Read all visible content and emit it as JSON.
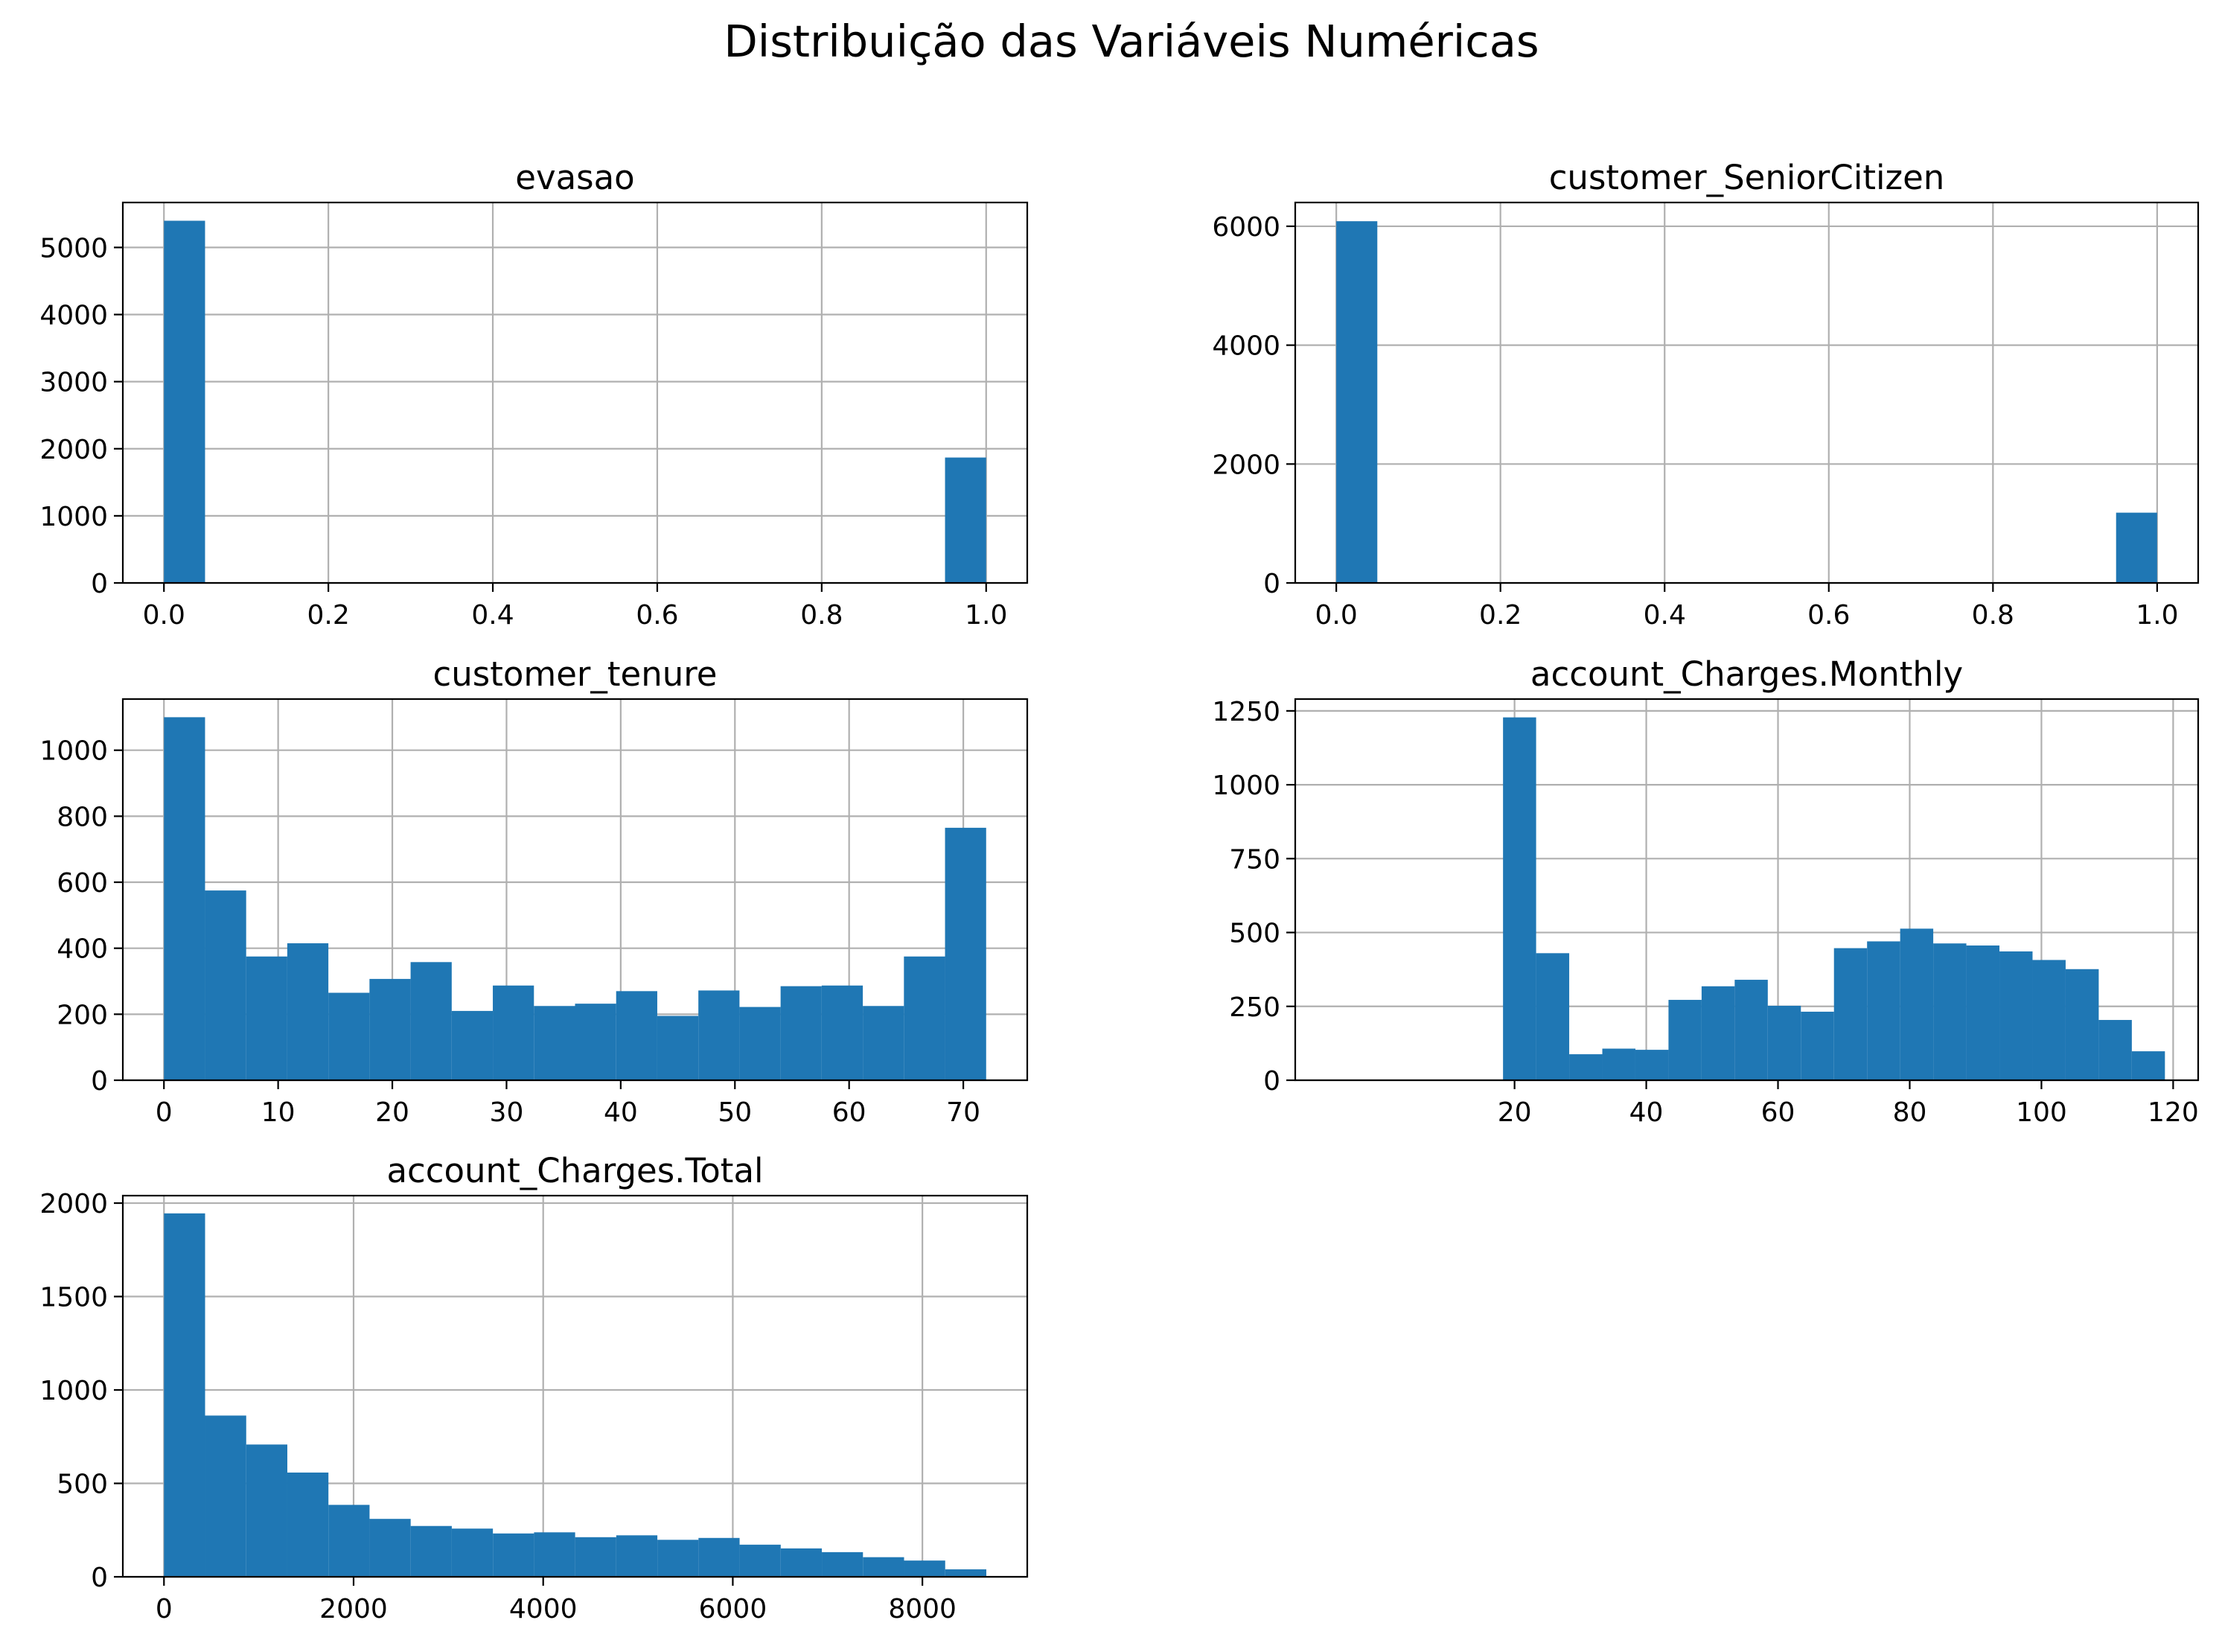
{
  "figure": {
    "title": "Distribuição das Variáveis Numéricas",
    "bar_color": "#1f77b4",
    "grid_color": "#b0b0b0"
  },
  "chart_data": [
    {
      "type": "bar",
      "title": "evasao",
      "xlim": [
        -0.05,
        1.05
      ],
      "ylim": [
        0,
        5670
      ],
      "xticks": [
        0.0,
        0.2,
        0.4,
        0.6,
        0.8,
        1.0
      ],
      "xtick_labels": [
        "0.0",
        "0.2",
        "0.4",
        "0.6",
        "0.8",
        "1.0"
      ],
      "yticks": [
        0,
        1000,
        2000,
        3000,
        4000,
        5000
      ],
      "ytick_labels": [
        "0",
        "1000",
        "2000",
        "3000",
        "4000",
        "5000"
      ],
      "bin_edges": [
        0,
        0.05,
        0.1,
        0.15,
        0.2,
        0.25,
        0.3,
        0.35,
        0.4,
        0.45,
        0.5,
        0.55,
        0.6,
        0.65,
        0.7,
        0.75,
        0.8,
        0.85,
        0.9,
        0.95,
        1.0
      ],
      "values": [
        5398,
        0,
        0,
        0,
        0,
        0,
        0,
        0,
        0,
        0,
        0,
        0,
        0,
        0,
        0,
        0,
        0,
        0,
        0,
        1869
      ],
      "grid": true
    },
    {
      "type": "bar",
      "title": "customer_SeniorCitizen",
      "xlim": [
        -0.05,
        1.05
      ],
      "ylim": [
        0,
        6400
      ],
      "xticks": [
        0.0,
        0.2,
        0.4,
        0.6,
        0.8,
        1.0
      ],
      "xtick_labels": [
        "0.0",
        "0.2",
        "0.4",
        "0.6",
        "0.8",
        "1.0"
      ],
      "yticks": [
        0,
        2000,
        4000,
        6000
      ],
      "ytick_labels": [
        "0",
        "2000",
        "4000",
        "6000"
      ],
      "bin_edges": [
        0,
        0.05,
        0.1,
        0.15,
        0.2,
        0.25,
        0.3,
        0.35,
        0.4,
        0.45,
        0.5,
        0.55,
        0.6,
        0.65,
        0.7,
        0.75,
        0.8,
        0.85,
        0.9,
        0.95,
        1.0
      ],
      "values": [
        6085,
        0,
        0,
        0,
        0,
        0,
        0,
        0,
        0,
        0,
        0,
        0,
        0,
        0,
        0,
        0,
        0,
        0,
        0,
        1182
      ],
      "grid": true
    },
    {
      "type": "bar",
      "title": "customer_tenure",
      "xlim": [
        -3.6,
        75.6
      ],
      "ylim": [
        0,
        1155
      ],
      "xticks": [
        0,
        10,
        20,
        30,
        40,
        50,
        60,
        70
      ],
      "xtick_labels": [
        "0",
        "10",
        "20",
        "30",
        "40",
        "50",
        "60",
        "70"
      ],
      "yticks": [
        0,
        200,
        400,
        600,
        800,
        1000
      ],
      "ytick_labels": [
        "0",
        "200",
        "400",
        "600",
        "800",
        "1000"
      ],
      "bin_edges": [
        0,
        3.6,
        7.2,
        10.8,
        14.4,
        18,
        21.6,
        25.2,
        28.8,
        32.4,
        36,
        39.6,
        43.2,
        46.8,
        50.4,
        54,
        57.6,
        61.2,
        64.8,
        68.4,
        72
      ],
      "values": [
        1100,
        575,
        375,
        415,
        265,
        307,
        358,
        210,
        287,
        225,
        232,
        270,
        195,
        272,
        222,
        285,
        287,
        225,
        375,
        765
      ],
      "grid": true
    },
    {
      "type": "bar",
      "title": "account_Charges.Monthly",
      "xlim": [
        -13.3,
        123.8
      ],
      "ylim": [
        0,
        1290
      ],
      "xticks": [
        20,
        40,
        60,
        80,
        100,
        120
      ],
      "xtick_labels": [
        "20",
        "40",
        "60",
        "80",
        "100",
        "120"
      ],
      "yticks": [
        0,
        250,
        500,
        750,
        1000,
        1250
      ],
      "ytick_labels": [
        "0",
        "250",
        "500",
        "750",
        "1000",
        "1250"
      ],
      "bin_edges": [
        18.25,
        23.275,
        28.3,
        33.325,
        38.35,
        43.375,
        48.4,
        53.425,
        58.45,
        63.475,
        68.5,
        73.525,
        78.55,
        83.575,
        88.6,
        93.625,
        98.65,
        103.675,
        108.7,
        113.725,
        118.75
      ],
      "values": [
        1228,
        430,
        88,
        107,
        103,
        272,
        318,
        340,
        252,
        232,
        447,
        470,
        513,
        463,
        456,
        436,
        407,
        376,
        204,
        98
      ],
      "grid": true
    },
    {
      "type": "bar",
      "title": "account_Charges.Total",
      "xlim": [
        -434,
        9106
      ],
      "ylim": [
        0,
        2040
      ],
      "xticks": [
        0,
        2000,
        4000,
        6000,
        8000
      ],
      "xtick_labels": [
        "0",
        "2000",
        "4000",
        "6000",
        "8000"
      ],
      "yticks": [
        0,
        500,
        1000,
        1500,
        2000
      ],
      "ytick_labels": [
        "0",
        "500",
        "1000",
        "1500",
        "2000"
      ],
      "bin_edges": [
        0,
        433.7,
        867.4,
        1301.1,
        1734.8,
        2168.5,
        2602.2,
        3035.9,
        3469.6,
        3903.3,
        4337,
        4770.7,
        5204.4,
        5638.1,
        6071.8,
        6505.5,
        6939.2,
        7372.9,
        7806.6,
        8240.3,
        8674
      ],
      "values": [
        1945,
        863,
        708,
        558,
        385,
        310,
        272,
        258,
        232,
        238,
        212,
        222,
        198,
        208,
        172,
        152,
        132,
        105,
        87,
        40
      ],
      "grid": true
    }
  ]
}
